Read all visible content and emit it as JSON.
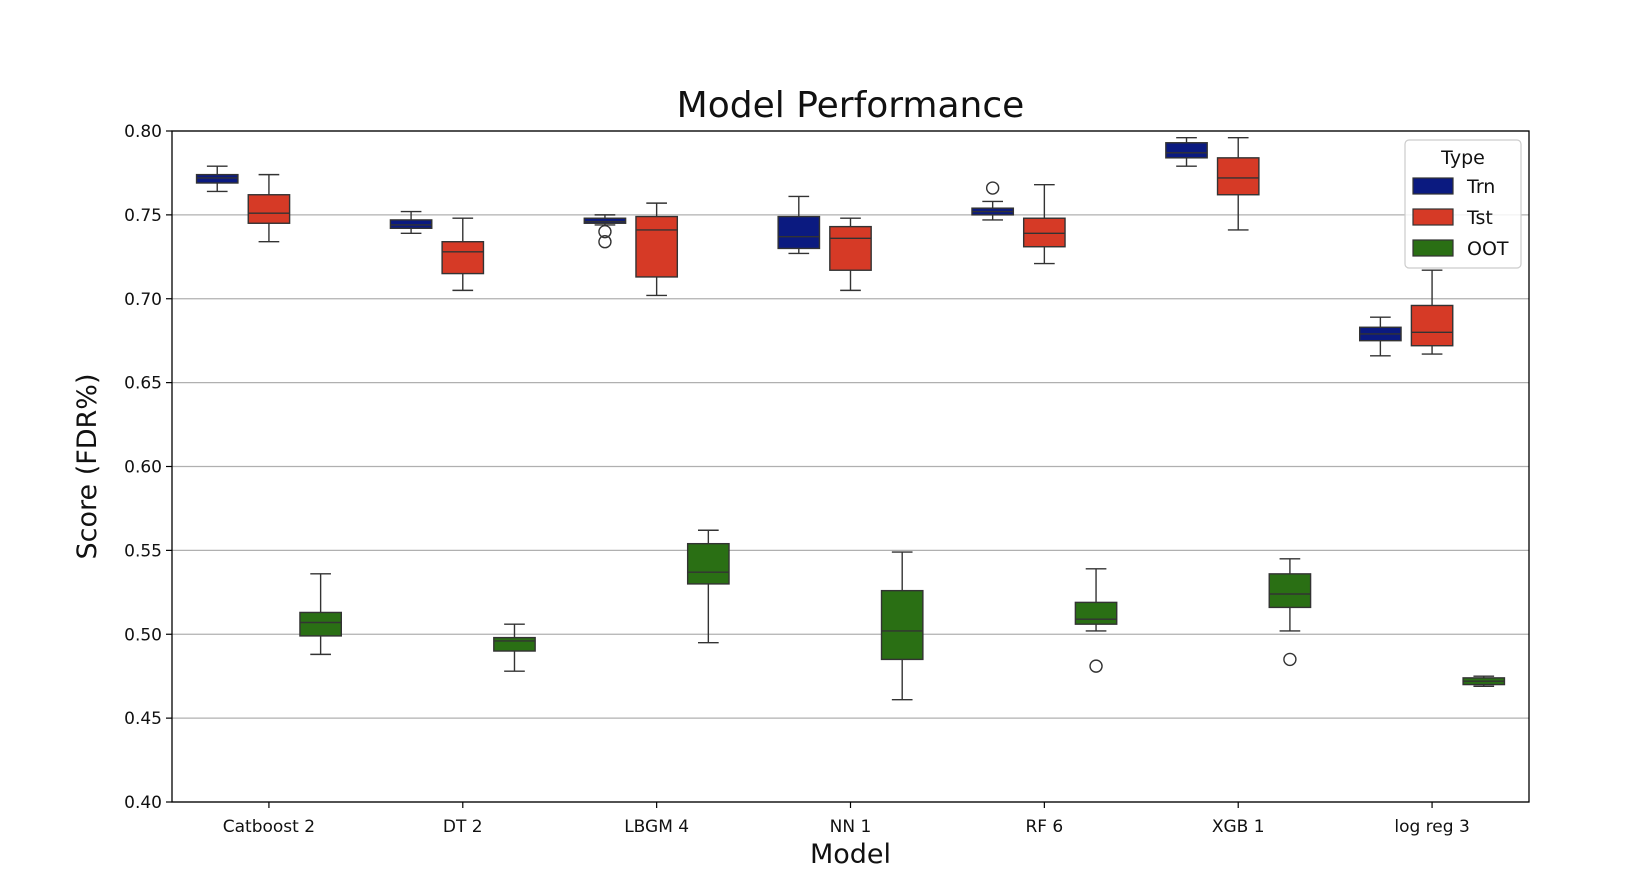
{
  "chart_data": {
    "type": "box",
    "title": "Model Performance",
    "xlabel": "Model",
    "ylabel": "Score (FDR%)",
    "ylim": [
      0.4,
      0.8
    ],
    "yticks": [
      "0.40",
      "0.45",
      "0.50",
      "0.55",
      "0.60",
      "0.65",
      "0.70",
      "0.75",
      "0.80"
    ],
    "grid": "horizontal",
    "legend": {
      "title": "Type",
      "placement": "top-right"
    },
    "categories": [
      "Catboost 2",
      "DT 2",
      "LBGM 4",
      "NN 1",
      "RF 6",
      "XGB 1",
      "log reg 3"
    ],
    "series": [
      {
        "name": "Trn",
        "color": "#0b1a80",
        "boxes": [
          {
            "min": 0.764,
            "q1": 0.769,
            "median": 0.772,
            "q3": 0.774,
            "max": 0.779,
            "outliers": []
          },
          {
            "min": 0.739,
            "q1": 0.742,
            "median": 0.744,
            "q3": 0.747,
            "max": 0.752,
            "outliers": []
          },
          {
            "min": 0.744,
            "q1": 0.745,
            "median": 0.746,
            "q3": 0.748,
            "max": 0.75,
            "outliers": [
              0.74,
              0.734
            ]
          },
          {
            "min": 0.727,
            "q1": 0.73,
            "median": 0.737,
            "q3": 0.749,
            "max": 0.761,
            "outliers": []
          },
          {
            "min": 0.747,
            "q1": 0.75,
            "median": 0.752,
            "q3": 0.754,
            "max": 0.758,
            "outliers": [
              0.766
            ]
          },
          {
            "min": 0.779,
            "q1": 0.784,
            "median": 0.787,
            "q3": 0.793,
            "max": 0.796,
            "outliers": []
          },
          {
            "min": 0.666,
            "q1": 0.675,
            "median": 0.679,
            "q3": 0.683,
            "max": 0.689,
            "outliers": []
          }
        ]
      },
      {
        "name": "Tst",
        "color": "#d63a26",
        "boxes": [
          {
            "min": 0.734,
            "q1": 0.745,
            "median": 0.751,
            "q3": 0.762,
            "max": 0.774,
            "outliers": []
          },
          {
            "min": 0.705,
            "q1": 0.715,
            "median": 0.728,
            "q3": 0.734,
            "max": 0.748,
            "outliers": []
          },
          {
            "min": 0.702,
            "q1": 0.713,
            "median": 0.741,
            "q3": 0.749,
            "max": 0.757,
            "outliers": []
          },
          {
            "min": 0.705,
            "q1": 0.717,
            "median": 0.736,
            "q3": 0.743,
            "max": 0.748,
            "outliers": []
          },
          {
            "min": 0.721,
            "q1": 0.731,
            "median": 0.739,
            "q3": 0.748,
            "max": 0.768,
            "outliers": []
          },
          {
            "min": 0.741,
            "q1": 0.762,
            "median": 0.772,
            "q3": 0.784,
            "max": 0.796,
            "outliers": []
          },
          {
            "min": 0.667,
            "q1": 0.672,
            "median": 0.68,
            "q3": 0.696,
            "max": 0.717,
            "outliers": []
          }
        ]
      },
      {
        "name": "OOT",
        "color": "#2a6f14",
        "boxes": [
          {
            "min": 0.488,
            "q1": 0.499,
            "median": 0.507,
            "q3": 0.513,
            "max": 0.536,
            "outliers": []
          },
          {
            "min": 0.478,
            "q1": 0.49,
            "median": 0.496,
            "q3": 0.498,
            "max": 0.506,
            "outliers": []
          },
          {
            "min": 0.495,
            "q1": 0.53,
            "median": 0.537,
            "q3": 0.554,
            "max": 0.562,
            "outliers": []
          },
          {
            "min": 0.461,
            "q1": 0.485,
            "median": 0.502,
            "q3": 0.526,
            "max": 0.549,
            "outliers": []
          },
          {
            "min": 0.502,
            "q1": 0.506,
            "median": 0.509,
            "q3": 0.519,
            "max": 0.539,
            "outliers": [
              0.481
            ]
          },
          {
            "min": 0.502,
            "q1": 0.516,
            "median": 0.524,
            "q3": 0.536,
            "max": 0.545,
            "outliers": [
              0.485
            ]
          },
          {
            "min": 0.469,
            "q1": 0.47,
            "median": 0.472,
            "q3": 0.474,
            "max": 0.475,
            "outliers": []
          }
        ]
      }
    ]
  }
}
